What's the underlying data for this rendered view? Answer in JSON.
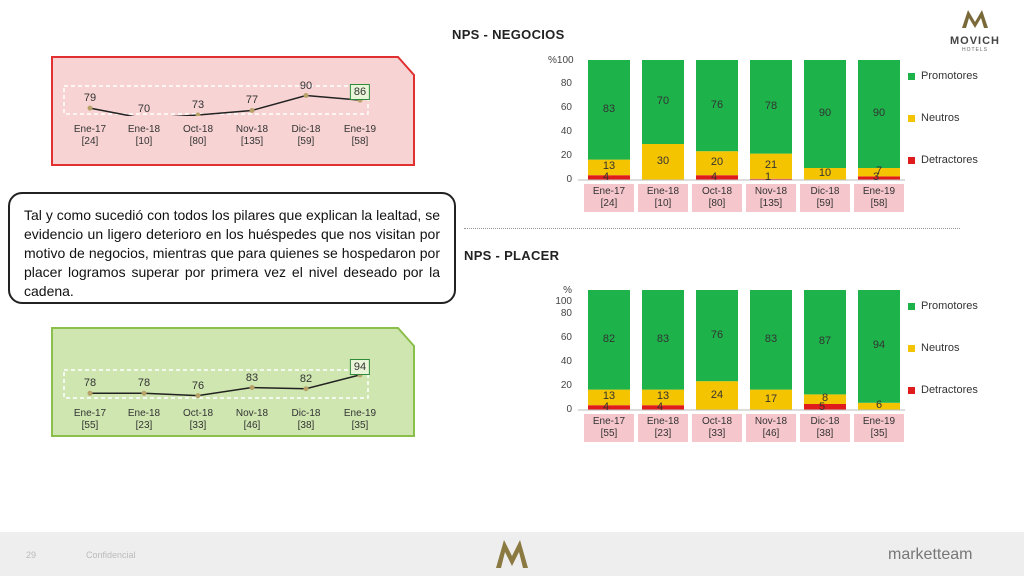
{
  "brand": {
    "logo_text": "MOVICH",
    "logo_sub": "HOTELS",
    "footer_brand": "marketteam",
    "footer_page": "29",
    "footer_note": "Confidencial"
  },
  "callout_text": "Tal y como sucedió con todos los pilares que explican la lealtad, se evidencio un ligero deterioro en los huéspedes que nos visitan por motivo de negocios, mientras que para quienes se hospedaron por placer logramos superar por primera vez el nivel deseado por la cadena.",
  "colors": {
    "promotores": "#1db34a",
    "neutros": "#f5c400",
    "detractores": "#e01b1b",
    "cat_bg": "#f5c6cb",
    "panel_red_bg": "#f7d3d3",
    "panel_red_border": "#e03030",
    "panel_green_bg": "#cfe6b0",
    "panel_green_border": "#8bbf4c"
  },
  "charts": {
    "negocios": {
      "title": "NPS - NEGOCIOS",
      "yaxis_label": "%100",
      "yticks": [
        "80",
        "60",
        "40",
        "20",
        "0"
      ],
      "categories": [
        "Ene-17",
        "Ene-18",
        "Oct-18",
        "Nov-18",
        "Dic-18",
        "Ene-19"
      ],
      "counts": [
        "[24]",
        "[10]",
        "[80]",
        "[135]",
        "[59]",
        "[58]"
      ],
      "legend": [
        "Promotores",
        "Neutros",
        "Detractores"
      ],
      "promotores": [
        83,
        70,
        76,
        78,
        90,
        90
      ],
      "neutros": [
        13,
        30,
        20,
        21,
        10,
        7
      ],
      "detractores": [
        4,
        0,
        4,
        1,
        0,
        3
      ],
      "detractor_labels": [
        "4",
        "",
        "4",
        "1",
        "",
        "3"
      ],
      "nps_line": [
        "79",
        "70",
        "73",
        "77",
        "90",
        "86"
      ],
      "nps_values": [
        79,
        70,
        73,
        77,
        90,
        86
      ]
    },
    "placer": {
      "title": "NPS - PLACER",
      "yaxis_label": "% 100",
      "yticks": [
        "80",
        "60",
        "40",
        "20",
        "0"
      ],
      "categories": [
        "Ene-17",
        "Ene-18",
        "Oct-18",
        "Nov-18",
        "Dic-18",
        "Ene-19"
      ],
      "counts": [
        "[55]",
        "[23]",
        "[33]",
        "[46]",
        "[38]",
        "[35]"
      ],
      "legend": [
        "Promotores",
        "Neutros",
        "Detractores"
      ],
      "promotores": [
        82,
        83,
        76,
        83,
        87,
        94
      ],
      "neutros": [
        13,
        13,
        24,
        17,
        8,
        6
      ],
      "detractores": [
        4,
        4,
        0,
        0,
        5,
        0
      ],
      "detractor_labels": [
        "4",
        "4",
        "",
        "",
        "5",
        ""
      ],
      "nps_line": [
        "78",
        "78",
        "76",
        "83",
        "82",
        "94"
      ],
      "nps_values": [
        78,
        78,
        76,
        83,
        82,
        94
      ]
    }
  },
  "chart_data": [
    {
      "type": "bar",
      "title": "NPS - NEGOCIOS",
      "categories": [
        "Ene-17",
        "Ene-18",
        "Oct-18",
        "Nov-18",
        "Dic-18",
        "Ene-19"
      ],
      "series": [
        {
          "name": "Promotores",
          "values": [
            83,
            70,
            76,
            78,
            90,
            90
          ]
        },
        {
          "name": "Neutros",
          "values": [
            13,
            30,
            20,
            21,
            10,
            7
          ]
        },
        {
          "name": "Detractores",
          "values": [
            4,
            0,
            4,
            1,
            0,
            3
          ]
        }
      ],
      "ylim": [
        0,
        100
      ],
      "legend": "right"
    },
    {
      "type": "line",
      "categories": [
        "Ene-17",
        "Ene-18",
        "Oct-18",
        "Nov-18",
        "Dic-18",
        "Ene-19"
      ],
      "values": [
        79,
        70,
        73,
        77,
        90,
        86
      ]
    },
    {
      "type": "bar",
      "title": "NPS - PLACER",
      "categories": [
        "Ene-17",
        "Ene-18",
        "Oct-18",
        "Nov-18",
        "Dic-18",
        "Ene-19"
      ],
      "series": [
        {
          "name": "Promotores",
          "values": [
            82,
            83,
            76,
            83,
            87,
            94
          ]
        },
        {
          "name": "Neutros",
          "values": [
            13,
            13,
            24,
            17,
            8,
            6
          ]
        },
        {
          "name": "Detractores",
          "values": [
            4,
            4,
            0,
            0,
            5,
            0
          ]
        }
      ],
      "ylim": [
        0,
        100
      ],
      "legend": "right"
    },
    {
      "type": "line",
      "categories": [
        "Ene-17",
        "Ene-18",
        "Oct-18",
        "Nov-18",
        "Dic-18",
        "Ene-19"
      ],
      "values": [
        78,
        78,
        76,
        83,
        82,
        94
      ]
    }
  ]
}
